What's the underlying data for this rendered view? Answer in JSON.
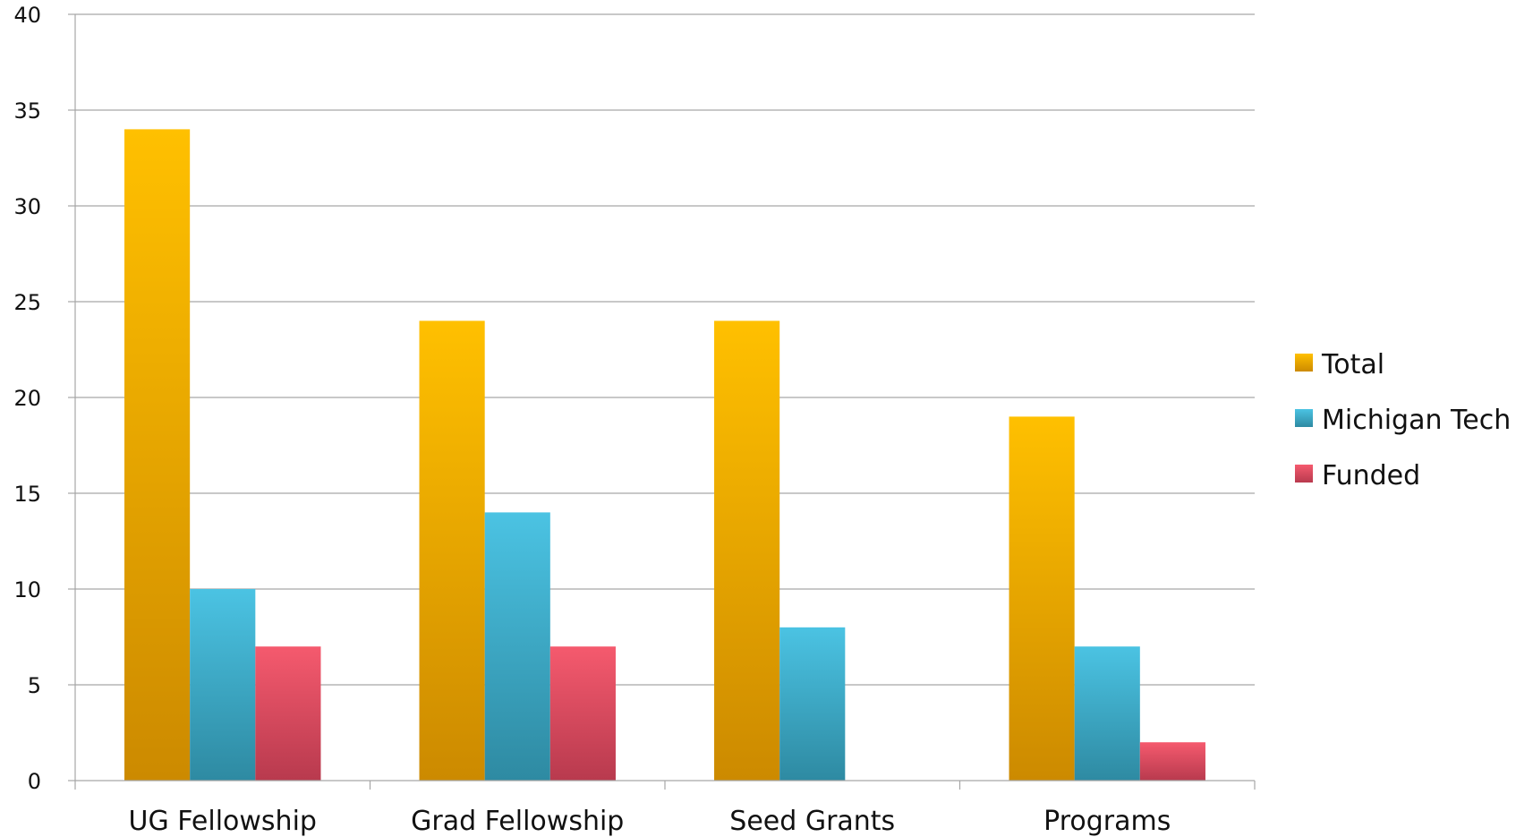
{
  "chart_data": {
    "type": "bar",
    "categories": [
      "UG Fellowship",
      "Grad Fellowship",
      "Seed Grants",
      "Programs"
    ],
    "series": [
      {
        "name": "Total",
        "values": [
          34,
          24,
          24,
          19
        ],
        "color_top": "#ffc000",
        "color_bottom": "#cc8a00"
      },
      {
        "name": "Michigan Tech",
        "values": [
          10,
          14,
          8,
          7
        ],
        "color_top": "#4bc3e3",
        "color_bottom": "#2e8aa2"
      },
      {
        "name": "Funded",
        "values": [
          7,
          7,
          null,
          2
        ],
        "color_top": "#f55a6e",
        "color_bottom": "#b83a4e"
      }
    ],
    "ylim": [
      0,
      40
    ],
    "yticks": [
      0,
      5,
      10,
      15,
      20,
      25,
      30,
      35,
      40
    ],
    "grid": true,
    "legend_position": "right"
  }
}
